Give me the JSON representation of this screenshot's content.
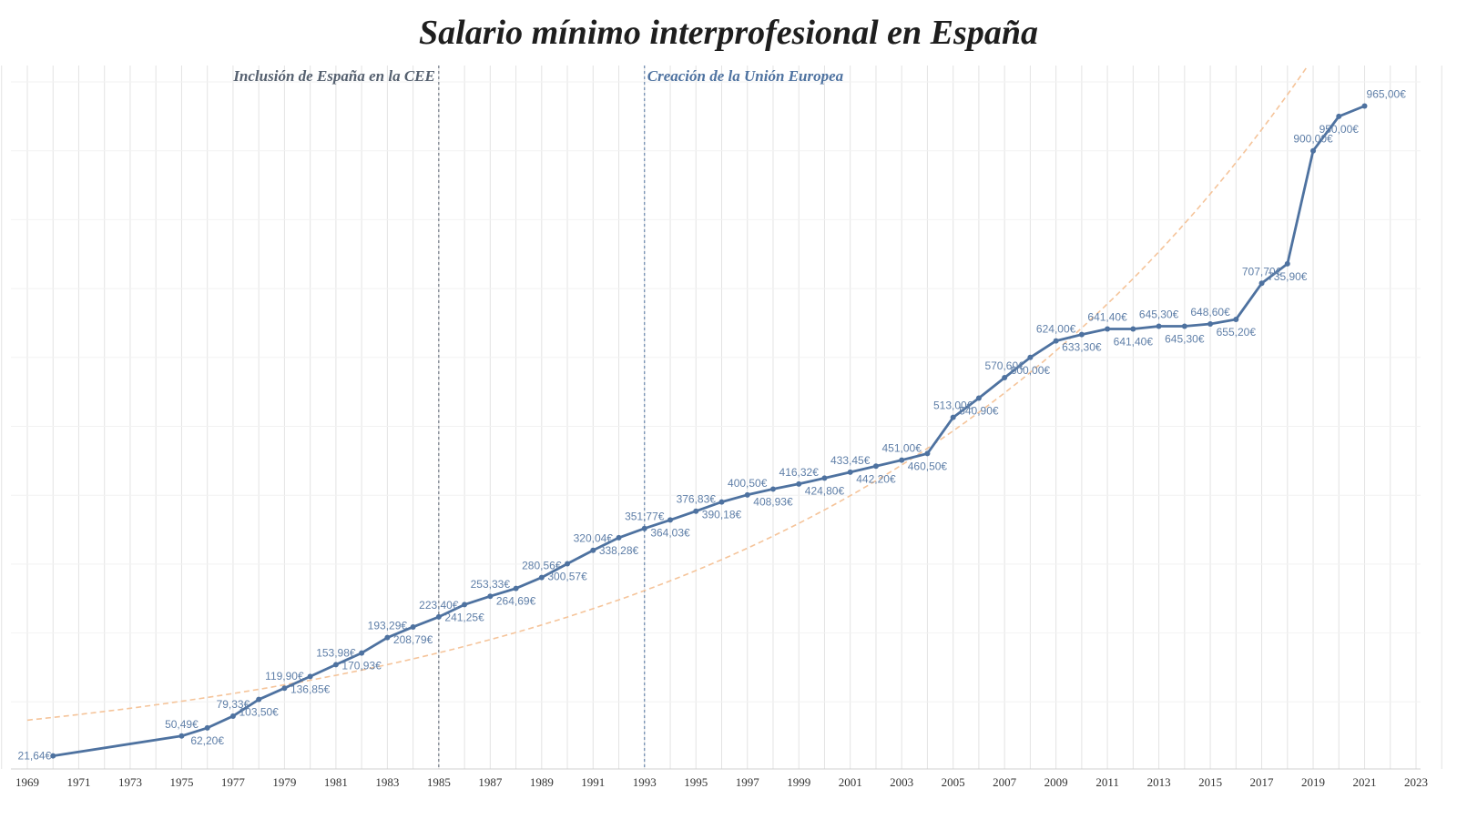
{
  "chart_data": {
    "type": "line",
    "title": "Salario mínimo interprofesional en España",
    "xlabel": "",
    "ylabel": "",
    "xlim": [
      1969,
      2023
    ],
    "ylim": [
      0,
      1000
    ],
    "x_ticks": [
      "1969",
      "1971",
      "1973",
      "1975",
      "1977",
      "1979",
      "1981",
      "1983",
      "1985",
      "1987",
      "1989",
      "1991",
      "1993",
      "1995",
      "1997",
      "1999",
      "2001",
      "2003",
      "2005",
      "2007",
      "2009",
      "2011",
      "2013",
      "2015",
      "2017",
      "2019",
      "2021",
      "2023"
    ],
    "grid": "vertical lines every year, light horizontal lines",
    "colors": {
      "line": "#4e72a0",
      "trend": "#f5c49a",
      "grid": "#e3e3e3",
      "annotation_left": "#55606f",
      "annotation_right": "#4e72a0"
    },
    "series": [
      {
        "x": [
          1970,
          1975,
          1976,
          1977,
          1978,
          1979,
          1980,
          1981,
          1982,
          1983,
          1984,
          1985,
          1986,
          1987,
          1988,
          1989,
          1990,
          1991,
          1992,
          1993,
          1994,
          1995,
          1996,
          1997,
          1998,
          1999,
          2000,
          2001,
          2002,
          2003,
          2004,
          2005,
          2006,
          2007,
          2008,
          2009,
          2010,
          2011,
          2012,
          2013,
          2014,
          2015,
          2016,
          2017,
          2018,
          2019,
          2020,
          2021
        ],
        "values": [
          21.64,
          50.49,
          62.2,
          79.33,
          103.5,
          119.9,
          136.85,
          153.98,
          170.93,
          193.29,
          208.79,
          223.4,
          241.25,
          253.33,
          264.69,
          280.56,
          300.57,
          320.04,
          338.28,
          351.77,
          364.03,
          376.83,
          390.18,
          400.5,
          408.93,
          416.32,
          424.8,
          433.45,
          442.2,
          451.0,
          460.5,
          513.0,
          540.9,
          570.6,
          600.0,
          624.0,
          633.3,
          641.4,
          641.4,
          645.3,
          645.3,
          648.6,
          655.2,
          707.7,
          735.9,
          900.0,
          950.0,
          965.0
        ],
        "labels": [
          "21,64€",
          "50,49€",
          "62,20€",
          "79,33€",
          "103,50€",
          "119,90€",
          "136,85€",
          "153,98€",
          "170,93€",
          "193,29€",
          "208,79€",
          "223,40€",
          "241,25€",
          "253,33€",
          "264,69€",
          "280,56€",
          "300,57€",
          "320,04€",
          "338,28€",
          "351,77€",
          "364,03€",
          "376,83€",
          "390,18€",
          "400,50€",
          "408,93€",
          "416,32€",
          "424,80€",
          "433,45€",
          "442,20€",
          "451,00€",
          "460,50€",
          "513,00€",
          "540,90€",
          "570,60€",
          "600,00€",
          "624,00€",
          "633,30€",
          "641,40€",
          "641,40€",
          "645,30€",
          "645,30€",
          "648,60€",
          "655,20€",
          "707,70€",
          "735,90€",
          "900,00€",
          "950,00€",
          "965,00€"
        ]
      }
    ],
    "trend": {
      "type": "exponential",
      "style": "dashed"
    },
    "annotations": [
      {
        "x": 1985,
        "text": "Inclusión de España en la CEE",
        "side": "left",
        "color": "#55606f"
      },
      {
        "x": 1993,
        "text": "Creación de la Unión Europea",
        "side": "right",
        "color": "#4e72a0"
      }
    ]
  }
}
